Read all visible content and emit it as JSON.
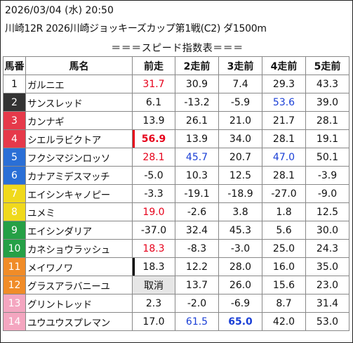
{
  "header": {
    "datetime": "2026/03/04 (水) 20:50",
    "race": "川崎12R 2026川崎ジョッキーズカップ第1戦(C2) ダ1500m"
  },
  "title": "＝＝＝スピード指数表＝＝＝",
  "columns": [
    "馬番",
    "馬名",
    "前走",
    "2走前",
    "3走前",
    "4走前",
    "5走前"
  ],
  "colors": {
    "frame_colors": [
      "#ffffff",
      "#333333",
      "#e6394a",
      "#2a6fd6",
      "#f0d91c",
      "#25a046",
      "#f08c28",
      "#f4a6c0"
    ],
    "red": "#e6001a",
    "blue": "#1a3fd6"
  },
  "rows": [
    {
      "num": "1",
      "name": "ガルニエ",
      "v1": "31.7",
      "v2": "30.9",
      "v3": "7.4",
      "v4": "29.3",
      "v5": "43.3"
    },
    {
      "num": "2",
      "name": "サンスレッド",
      "v1": "6.1",
      "v2": "-13.2",
      "v3": "-5.9",
      "v4": "53.6",
      "v5": "39.0"
    },
    {
      "num": "3",
      "name": "カンナギ",
      "v1": "13.9",
      "v2": "26.1",
      "v3": "21.0",
      "v4": "21.7",
      "v5": "28.1"
    },
    {
      "num": "4",
      "name": "シエルラビクトア",
      "v1": "56.9",
      "v2": "13.9",
      "v3": "34.0",
      "v4": "28.1",
      "v5": "19.1"
    },
    {
      "num": "5",
      "name": "フクシマジンロッソ",
      "v1": "28.1",
      "v2": "45.7",
      "v3": "20.7",
      "v4": "47.0",
      "v5": "50.1"
    },
    {
      "num": "6",
      "name": "カナアミデスマッチ",
      "v1": "-5.0",
      "v2": "10.3",
      "v3": "12.5",
      "v4": "28.1",
      "v5": "-3.9"
    },
    {
      "num": "7",
      "name": "エイシンキャノピー",
      "v1": "-3.3",
      "v2": "-19.1",
      "v3": "-18.9",
      "v4": "-27.0",
      "v5": "-9.0"
    },
    {
      "num": "8",
      "name": "ユメミ",
      "v1": "19.0",
      "v2": "-2.6",
      "v3": "3.8",
      "v4": "1.8",
      "v5": "12.5"
    },
    {
      "num": "9",
      "name": "エイシンダリア",
      "v1": "-37.0",
      "v2": "32.4",
      "v3": "45.3",
      "v4": "5.6",
      "v5": "30.0"
    },
    {
      "num": "10",
      "name": "カネショウラッシュ",
      "v1": "18.3",
      "v2": "-8.3",
      "v3": "-3.0",
      "v4": "25.0",
      "v5": "24.3"
    },
    {
      "num": "11",
      "name": "メイワノワ",
      "v1": "18.3",
      "v2": "12.2",
      "v3": "28.0",
      "v4": "16.0",
      "v5": "35.0"
    },
    {
      "num": "12",
      "name": "グラスアラバニーユ",
      "v1": "取消",
      "v2": "13.7",
      "v3": "26.0",
      "v4": "15.6",
      "v5": "23.0"
    },
    {
      "num": "13",
      "name": "グリントレッド",
      "v1": "2.3",
      "v2": "-2.0",
      "v3": "-6.9",
      "v4": "8.7",
      "v5": "31.4"
    },
    {
      "num": "14",
      "name": "ユウユウスプレマン",
      "v1": "17.0",
      "v2": "61.5",
      "v3": "65.0",
      "v4": "42.0",
      "v5": "53.0"
    }
  ]
}
